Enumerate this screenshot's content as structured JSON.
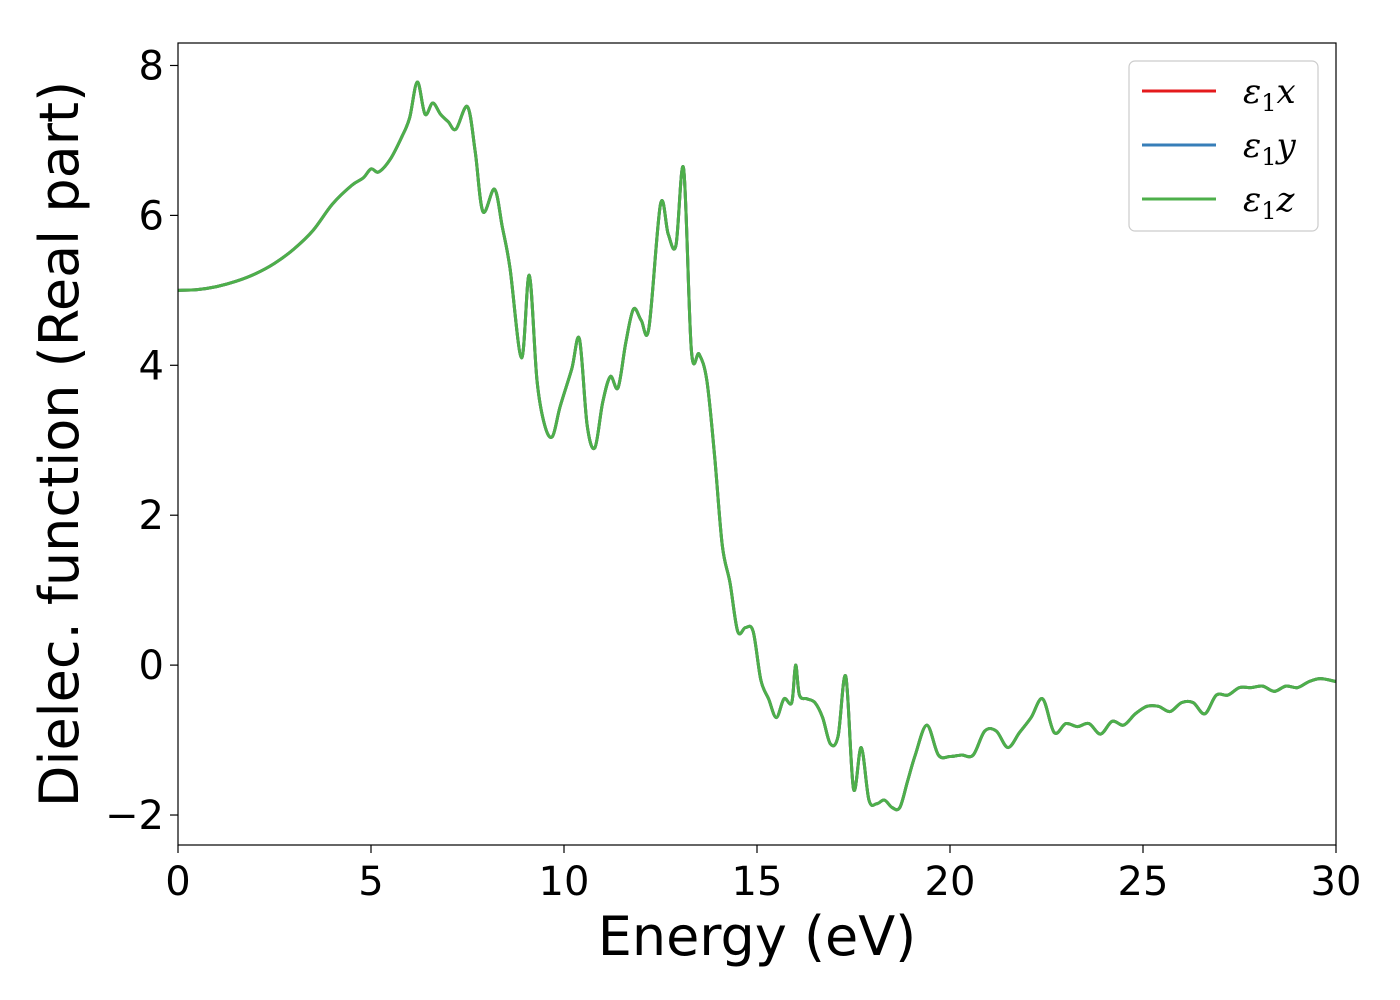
{
  "chart_data": {
    "type": "line",
    "xlabel": "Energy (eV)",
    "ylabel": "Dielec. function (Real part)",
    "xlim": [
      0,
      30
    ],
    "ylim": [
      -2.4,
      8.3
    ],
    "xticks": [
      0,
      5,
      10,
      15,
      20,
      25,
      30
    ],
    "yticks": [
      -2,
      0,
      2,
      4,
      6,
      8
    ],
    "xtick_labels": [
      "0",
      "5",
      "10",
      "15",
      "20",
      "25",
      "30"
    ],
    "ytick_labels": [
      "−2",
      "0",
      "2",
      "4",
      "6",
      "8"
    ],
    "grid": false,
    "legend_position": "top-right",
    "x": [
      0,
      0.5,
      1,
      1.5,
      2,
      2.5,
      3,
      3.5,
      4,
      4.5,
      4.8,
      5,
      5.2,
      5.5,
      5.8,
      6.0,
      6.2,
      6.4,
      6.6,
      6.8,
      7.0,
      7.2,
      7.5,
      7.7,
      7.9,
      8.2,
      8.4,
      8.6,
      8.9,
      9.1,
      9.3,
      9.5,
      9.7,
      9.9,
      10.2,
      10.4,
      10.6,
      10.8,
      11.0,
      11.2,
      11.4,
      11.6,
      11.8,
      12.0,
      12.2,
      12.5,
      12.7,
      12.9,
      13.1,
      13.3,
      13.5,
      13.7,
      13.9,
      14.1,
      14.3,
      14.5,
      14.7,
      14.9,
      15.1,
      15.3,
      15.5,
      15.7,
      15.9,
      16.0,
      16.1,
      16.3,
      16.5,
      16.7,
      16.9,
      17.1,
      17.3,
      17.5,
      17.7,
      17.9,
      18.1,
      18.3,
      18.5,
      18.7,
      18.9,
      19.1,
      19.4,
      19.7,
      20.0,
      20.3,
      20.6,
      20.9,
      21.2,
      21.5,
      21.8,
      22.1,
      22.4,
      22.7,
      23.0,
      23.3,
      23.6,
      23.9,
      24.2,
      24.5,
      24.8,
      25.1,
      25.4,
      25.7,
      26.0,
      26.3,
      26.6,
      26.9,
      27.2,
      27.5,
      27.8,
      28.1,
      28.4,
      28.7,
      29.0,
      29.3,
      29.6,
      30.0
    ],
    "series": [
      {
        "name": "x",
        "color": "#e41a1c",
        "values": [
          5.0,
          5.01,
          5.05,
          5.12,
          5.22,
          5.36,
          5.55,
          5.8,
          6.15,
          6.4,
          6.5,
          6.62,
          6.58,
          6.75,
          7.05,
          7.3,
          7.78,
          7.35,
          7.5,
          7.35,
          7.25,
          7.15,
          7.45,
          6.85,
          6.05,
          6.35,
          5.85,
          5.3,
          4.1,
          5.2,
          3.8,
          3.2,
          3.05,
          3.45,
          3.95,
          4.35,
          3.2,
          2.9,
          3.5,
          3.85,
          3.7,
          4.3,
          4.75,
          4.6,
          4.5,
          6.15,
          5.75,
          5.6,
          6.62,
          4.2,
          4.15,
          3.8,
          2.8,
          1.6,
          1.1,
          0.45,
          0.5,
          0.45,
          -0.2,
          -0.45,
          -0.7,
          -0.45,
          -0.5,
          0.0,
          -0.4,
          -0.45,
          -0.5,
          -0.7,
          -1.05,
          -0.95,
          -0.15,
          -1.65,
          -1.1,
          -1.8,
          -1.85,
          -1.8,
          -1.9,
          -1.9,
          -1.55,
          -1.2,
          -0.8,
          -1.2,
          -1.22,
          -1.2,
          -1.2,
          -0.88,
          -0.88,
          -1.1,
          -0.9,
          -0.7,
          -0.45,
          -0.9,
          -0.78,
          -0.82,
          -0.78,
          -0.92,
          -0.75,
          -0.8,
          -0.65,
          -0.55,
          -0.55,
          -0.62,
          -0.5,
          -0.5,
          -0.65,
          -0.4,
          -0.4,
          -0.3,
          -0.3,
          -0.28,
          -0.35,
          -0.28,
          -0.3,
          -0.22,
          -0.18,
          -0.22
        ]
      },
      {
        "name": "y",
        "color": "#377eb8",
        "values": [
          5.0,
          5.01,
          5.05,
          5.12,
          5.22,
          5.36,
          5.55,
          5.8,
          6.15,
          6.4,
          6.5,
          6.62,
          6.58,
          6.75,
          7.05,
          7.3,
          7.78,
          7.35,
          7.5,
          7.35,
          7.25,
          7.15,
          7.45,
          6.85,
          6.05,
          6.35,
          5.85,
          5.3,
          4.1,
          5.2,
          3.8,
          3.2,
          3.05,
          3.45,
          3.95,
          4.35,
          3.2,
          2.9,
          3.5,
          3.85,
          3.7,
          4.3,
          4.75,
          4.6,
          4.5,
          6.15,
          5.75,
          5.6,
          6.62,
          4.2,
          4.15,
          3.8,
          2.8,
          1.6,
          1.1,
          0.45,
          0.5,
          0.45,
          -0.2,
          -0.45,
          -0.7,
          -0.45,
          -0.5,
          0.0,
          -0.4,
          -0.45,
          -0.5,
          -0.7,
          -1.05,
          -0.95,
          -0.15,
          -1.65,
          -1.1,
          -1.8,
          -1.85,
          -1.8,
          -1.9,
          -1.9,
          -1.55,
          -1.2,
          -0.8,
          -1.2,
          -1.22,
          -1.2,
          -1.2,
          -0.88,
          -0.88,
          -1.1,
          -0.9,
          -0.7,
          -0.45,
          -0.9,
          -0.78,
          -0.82,
          -0.78,
          -0.92,
          -0.75,
          -0.8,
          -0.65,
          -0.55,
          -0.55,
          -0.62,
          -0.5,
          -0.5,
          -0.65,
          -0.4,
          -0.4,
          -0.3,
          -0.3,
          -0.28,
          -0.35,
          -0.28,
          -0.3,
          -0.22,
          -0.18,
          -0.22
        ]
      },
      {
        "name": "z",
        "color": "#4daf4a",
        "values": [
          5.0,
          5.01,
          5.05,
          5.12,
          5.22,
          5.36,
          5.55,
          5.8,
          6.15,
          6.4,
          6.5,
          6.62,
          6.58,
          6.75,
          7.05,
          7.3,
          7.78,
          7.35,
          7.5,
          7.35,
          7.25,
          7.15,
          7.45,
          6.85,
          6.05,
          6.35,
          5.85,
          5.3,
          4.1,
          5.2,
          3.8,
          3.2,
          3.05,
          3.45,
          3.95,
          4.35,
          3.2,
          2.9,
          3.5,
          3.85,
          3.7,
          4.3,
          4.75,
          4.6,
          4.5,
          6.15,
          5.75,
          5.6,
          6.62,
          4.2,
          4.15,
          3.8,
          2.8,
          1.6,
          1.1,
          0.45,
          0.5,
          0.45,
          -0.2,
          -0.45,
          -0.7,
          -0.45,
          -0.5,
          0.0,
          -0.4,
          -0.45,
          -0.5,
          -0.7,
          -1.05,
          -0.95,
          -0.15,
          -1.65,
          -1.1,
          -1.8,
          -1.85,
          -1.8,
          -1.9,
          -1.9,
          -1.55,
          -1.2,
          -0.8,
          -1.2,
          -1.22,
          -1.2,
          -1.2,
          -0.88,
          -0.88,
          -1.1,
          -0.9,
          -0.7,
          -0.45,
          -0.9,
          -0.78,
          -0.82,
          -0.78,
          -0.92,
          -0.75,
          -0.8,
          -0.65,
          -0.55,
          -0.55,
          -0.62,
          -0.5,
          -0.5,
          -0.65,
          -0.4,
          -0.4,
          -0.3,
          -0.3,
          -0.28,
          -0.35,
          -0.28,
          -0.3,
          -0.22,
          -0.18,
          -0.22
        ]
      }
    ],
    "legend": [
      {
        "symbol": "ε",
        "sub": "1",
        "axis": "x",
        "color": "#e41a1c"
      },
      {
        "symbol": "ε",
        "sub": "1",
        "axis": "y",
        "color": "#377eb8"
      },
      {
        "symbol": "ε",
        "sub": "1",
        "axis": "z",
        "color": "#4daf4a"
      }
    ]
  }
}
